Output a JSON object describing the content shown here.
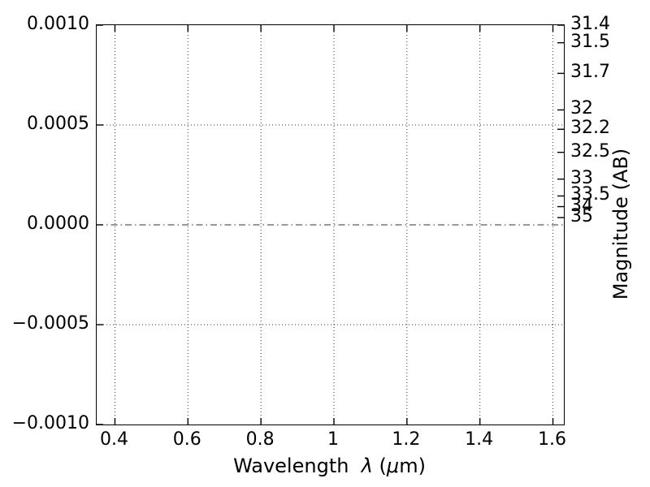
{
  "chart_data": {
    "type": "line",
    "title": "",
    "series": [],
    "grid": true,
    "legend": null,
    "x_axis": {
      "label_plain": "Wavelength  λ (μm)",
      "label_parts": [
        {
          "text": "Wavelength  ",
          "italic": false
        },
        {
          "text": "λ",
          "italic": true
        },
        {
          "text": " (",
          "italic": false
        },
        {
          "text": "μ",
          "italic": true
        },
        {
          "text": "m)",
          "italic": false
        }
      ],
      "lim": [
        0.35,
        1.63
      ],
      "grid_style": "dotted",
      "ticks": [
        {
          "label": "0.4",
          "value": 0.4
        },
        {
          "label": "0.6",
          "value": 0.6
        },
        {
          "label": "0.8",
          "value": 0.8
        },
        {
          "label": "1",
          "value": 1.0
        },
        {
          "label": "1.2",
          "value": 1.2
        },
        {
          "label": "1.4",
          "value": 1.4
        },
        {
          "label": "1.6",
          "value": 1.6
        }
      ]
    },
    "y_axis_left": {
      "label": "",
      "lim": [
        -0.001,
        0.001
      ],
      "grid_style": "dotted",
      "zero_line_style": "dash-dot",
      "ticks": [
        {
          "label": "0.0010",
          "value": 0.001
        },
        {
          "label": "0.0005",
          "value": 0.0005
        },
        {
          "label": "0.0000",
          "value": 0.0
        },
        {
          "label": "−0.0005",
          "value": -0.0005
        },
        {
          "label": "−0.0010",
          "value": -0.001
        }
      ]
    },
    "y_axis_right": {
      "label": "Magnitude (AB)",
      "ab_zeropoint": 23.9,
      "ticks": [
        {
          "label": "31.4",
          "value": 31.4
        },
        {
          "label": "31.5",
          "value": 31.5
        },
        {
          "label": "31.7",
          "value": 31.7
        },
        {
          "label": "32",
          "value": 32
        },
        {
          "label": "32.2",
          "value": 32.2
        },
        {
          "label": "32.5",
          "value": 32.5
        },
        {
          "label": "33",
          "value": 33
        },
        {
          "label": "33.5",
          "value": 33.5
        },
        {
          "label": "34",
          "value": 34
        },
        {
          "label": "35",
          "value": 35
        }
      ]
    },
    "colors": {
      "foreground": "#000000",
      "background": "#ffffff",
      "grid": "#333333"
    }
  }
}
